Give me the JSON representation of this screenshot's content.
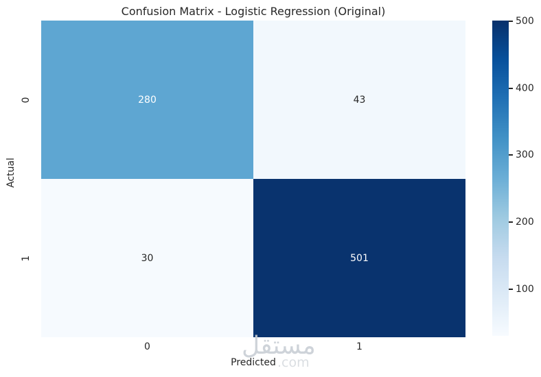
{
  "chart_data": {
    "type": "heatmap",
    "title": "Confusion Matrix - Logistic Regression (Original)",
    "xlabel": "Predicted",
    "ylabel": "Actual",
    "x_tick_labels": [
      "0",
      "1"
    ],
    "y_tick_labels": [
      "0",
      "1"
    ],
    "categories_x": [
      "0",
      "1"
    ],
    "categories_y": [
      "0",
      "1"
    ],
    "matrix": [
      [
        280,
        43
      ],
      [
        30,
        501
      ]
    ],
    "cells": [
      {
        "actual": "0",
        "predicted": "0",
        "value": "280",
        "color": "#5ea6d2",
        "text_color": "#ffffff"
      },
      {
        "actual": "0",
        "predicted": "1",
        "value": "43",
        "color": "#f2f8fd",
        "text_color": "#262626"
      },
      {
        "actual": "1",
        "predicted": "0",
        "value": "30",
        "color": "#f6fafe",
        "text_color": "#262626"
      },
      {
        "actual": "1",
        "predicted": "1",
        "value": "501",
        "color": "#09336e",
        "text_color": "#ffffff"
      }
    ],
    "colormap": "Blues",
    "colorbar": {
      "vmin": 30,
      "vmax": 501,
      "ticks": [
        "500",
        "400",
        "300",
        "200",
        "100"
      ],
      "gradient_stops": [
        "#f7fbff",
        "#deebf7",
        "#c6dbef",
        "#9ecae1",
        "#6baed6",
        "#4292c6",
        "#2171b5",
        "#08519c",
        "#08306b"
      ]
    },
    "grid": false,
    "legend": "colorbar-right"
  },
  "watermark": {
    "text": "مستقل",
    "suffix": ".com",
    "color": "#c9cfd5"
  }
}
